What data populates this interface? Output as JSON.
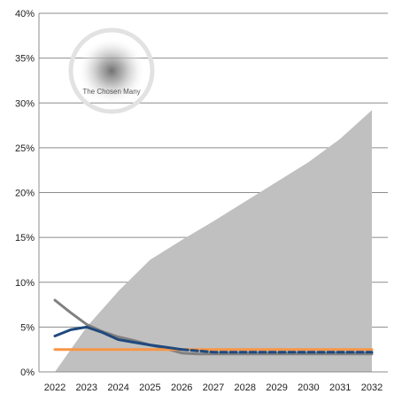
{
  "chart_data": {
    "type": "line",
    "title": "",
    "xlabel": "",
    "ylabel": "",
    "x": [
      2022,
      2023,
      2024,
      2025,
      2026,
      2027,
      2028,
      2029,
      2030,
      2031,
      2032
    ],
    "x_tick_labels": [
      "2022",
      "2023",
      "2024",
      "2025",
      "2026",
      "2027",
      "2028",
      "2029",
      "2030",
      "2031",
      "2032"
    ],
    "ylim": [
      0,
      40
    ],
    "y_ticks": [
      0,
      5,
      10,
      15,
      20,
      25,
      30,
      35,
      40
    ],
    "y_tick_labels": [
      "0%",
      "5%",
      "10%",
      "15%",
      "20%",
      "25%",
      "30%",
      "35%",
      "40%"
    ],
    "y_unit": "%",
    "grid": {
      "horizontal": true,
      "vertical": false
    },
    "legend": "none",
    "series": [
      {
        "kind": "area",
        "color": "#c0c0c0",
        "points": [
          [
            2022,
            0
          ],
          [
            2023,
            5
          ],
          [
            2024,
            9
          ],
          [
            2025,
            12.5
          ],
          [
            2026,
            14.7
          ],
          [
            2027,
            16.8
          ],
          [
            2028,
            19
          ],
          [
            2029,
            21.2
          ],
          [
            2030,
            23.4
          ],
          [
            2031,
            26
          ],
          [
            2032,
            29.2
          ]
        ]
      },
      {
        "kind": "line",
        "color": "#808080",
        "width": 3,
        "points": [
          [
            2022,
            8
          ],
          [
            2022.5,
            6.6
          ],
          [
            2023,
            5.3
          ],
          [
            2023.5,
            4.5
          ],
          [
            2024,
            3.9
          ],
          [
            2024.5,
            3.5
          ],
          [
            2025,
            3
          ],
          [
            2025.5,
            2.6
          ],
          [
            2026,
            2.1
          ],
          [
            2026.5,
            2
          ],
          [
            2027,
            2
          ],
          [
            2028,
            2
          ],
          [
            2029,
            2
          ],
          [
            2030,
            2
          ],
          [
            2031,
            2
          ],
          [
            2032,
            2
          ]
        ]
      },
      {
        "kind": "line",
        "color": "#f79646",
        "width": 3,
        "points": [
          [
            2022,
            2.5
          ],
          [
            2032,
            2.5
          ]
        ]
      },
      {
        "kind": "line",
        "color": "#1f497d",
        "width": 3,
        "points": [
          [
            2022,
            4
          ],
          [
            2022.5,
            4.7
          ],
          [
            2023,
            5
          ],
          [
            2023.5,
            4.4
          ],
          [
            2024,
            3.6
          ],
          [
            2024.5,
            3.3
          ],
          [
            2025,
            3
          ],
          [
            2025.5,
            2.75
          ],
          [
            2026,
            2.5
          ]
        ]
      },
      {
        "kind": "line",
        "color": "#1f497d",
        "width": 3,
        "dashed": true,
        "points": [
          [
            2026,
            2.5
          ],
          [
            2027,
            2.2
          ],
          [
            2028,
            2.2
          ],
          [
            2029,
            2.2
          ],
          [
            2030,
            2.2
          ],
          [
            2031,
            2.2
          ],
          [
            2032,
            2.2
          ]
        ]
      }
    ]
  },
  "watermark": {
    "text": "The Chosen Many"
  }
}
